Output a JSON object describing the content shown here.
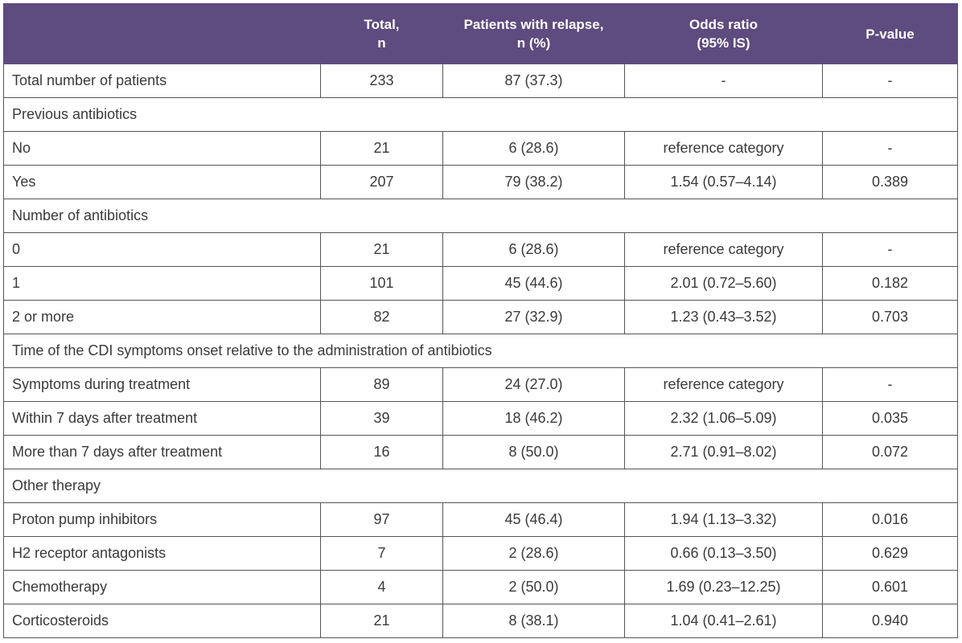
{
  "header": {
    "col1": "",
    "col2_line1": "Total,",
    "col2_line2": "n",
    "col3_line1": "Patients with relapse,",
    "col3_line2": "n (%)",
    "col4_line1": "Odds ratio",
    "col4_line2": "(95% IS)",
    "col5": "P-value"
  },
  "rows": [
    {
      "label": "Total number of patients",
      "total": "233",
      "relapse": "87 (37.3)",
      "or": "-",
      "p": "-"
    },
    {
      "section": "Previous antibiotics"
    },
    {
      "label": "No",
      "total": "21",
      "relapse": "6 (28.6)",
      "or": "reference category",
      "p": "-"
    },
    {
      "label": "Yes",
      "total": "207",
      "relapse": "79 (38.2)",
      "or": "1.54 (0.57–4.14)",
      "p": "0.389"
    },
    {
      "section": "Number of antibiotics"
    },
    {
      "label": "0",
      "total": "21",
      "relapse": "6 (28.6)",
      "or": "reference category",
      "p": "-"
    },
    {
      "label": "1",
      "total": "101",
      "relapse": "45 (44.6)",
      "or": "2.01 (0.72–5.60)",
      "p": "0.182"
    },
    {
      "label": "2 or more",
      "total": "82",
      "relapse": "27 (32.9)",
      "or": "1.23 (0.43–3.52)",
      "p": "0.703"
    },
    {
      "section": "Time of the CDI symptoms onset relative to the administration of antibiotics"
    },
    {
      "label": "Symptoms during treatment",
      "total": "89",
      "relapse": "24 (27.0)",
      "or": "reference category",
      "p": "-"
    },
    {
      "label": "Within 7 days after treatment",
      "total": "39",
      "relapse": "18 (46.2)",
      "or": "2.32 (1.06–5.09)",
      "p": "0.035"
    },
    {
      "label": "More than 7 days after treatment",
      "total": "16",
      "relapse": "8 (50.0)",
      "or": "2.71 (0.91–8.02)",
      "p": "0.072"
    },
    {
      "section": "Other therapy"
    },
    {
      "label": "Proton pump inhibitors",
      "total": "97",
      "relapse": "45 (46.4)",
      "or": "1.94 (1.13–3.32)",
      "p": "0.016"
    },
    {
      "label": "H2 receptor antagonists",
      "total": "7",
      "relapse": "2 (28.6)",
      "or": "0.66 (0.13–3.50)",
      "p": "0.629"
    },
    {
      "label": "Chemotherapy",
      "total": "4",
      "relapse": "2 (50.0)",
      "or": "1.69 (0.23–12.25)",
      "p": "0.601"
    },
    {
      "label": "Corticosteroids",
      "total": "21",
      "relapse": "8 (38.1)",
      "or": "1.04 (0.41–2.61)",
      "p": "0.940"
    }
  ]
}
